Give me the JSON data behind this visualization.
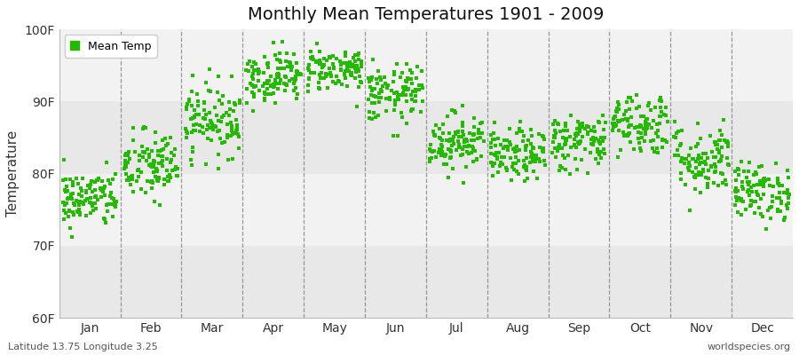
{
  "title": "Monthly Mean Temperatures 1901 - 2009",
  "ylabel": "Temperature",
  "subtitle_left": "Latitude 13.75 Longitude 3.25",
  "subtitle_right": "worldspecies.org",
  "legend_label": "Mean Temp",
  "marker_color": "#22BB00",
  "bg_dark": "#E8E8E8",
  "bg_light": "#F2F2F2",
  "fig_background": "#FFFFFF",
  "ylim": [
    60,
    100
  ],
  "yticks": [
    60,
    70,
    80,
    90,
    100
  ],
  "ytick_labels": [
    "60F",
    "70F",
    "80F",
    "90F",
    "100F"
  ],
  "months": [
    "Jan",
    "Feb",
    "Mar",
    "Apr",
    "May",
    "Jun",
    "Jul",
    "Aug",
    "Sep",
    "Oct",
    "Nov",
    "Dec"
  ],
  "n_years": 109,
  "monthly_means": [
    76.5,
    81.0,
    87.5,
    93.5,
    94.5,
    91.0,
    84.5,
    82.5,
    84.5,
    87.0,
    82.0,
    77.5
  ],
  "monthly_stds": [
    2.0,
    2.5,
    2.5,
    1.8,
    1.5,
    2.0,
    2.0,
    1.8,
    2.0,
    2.2,
    2.5,
    2.0
  ],
  "seed": 42
}
